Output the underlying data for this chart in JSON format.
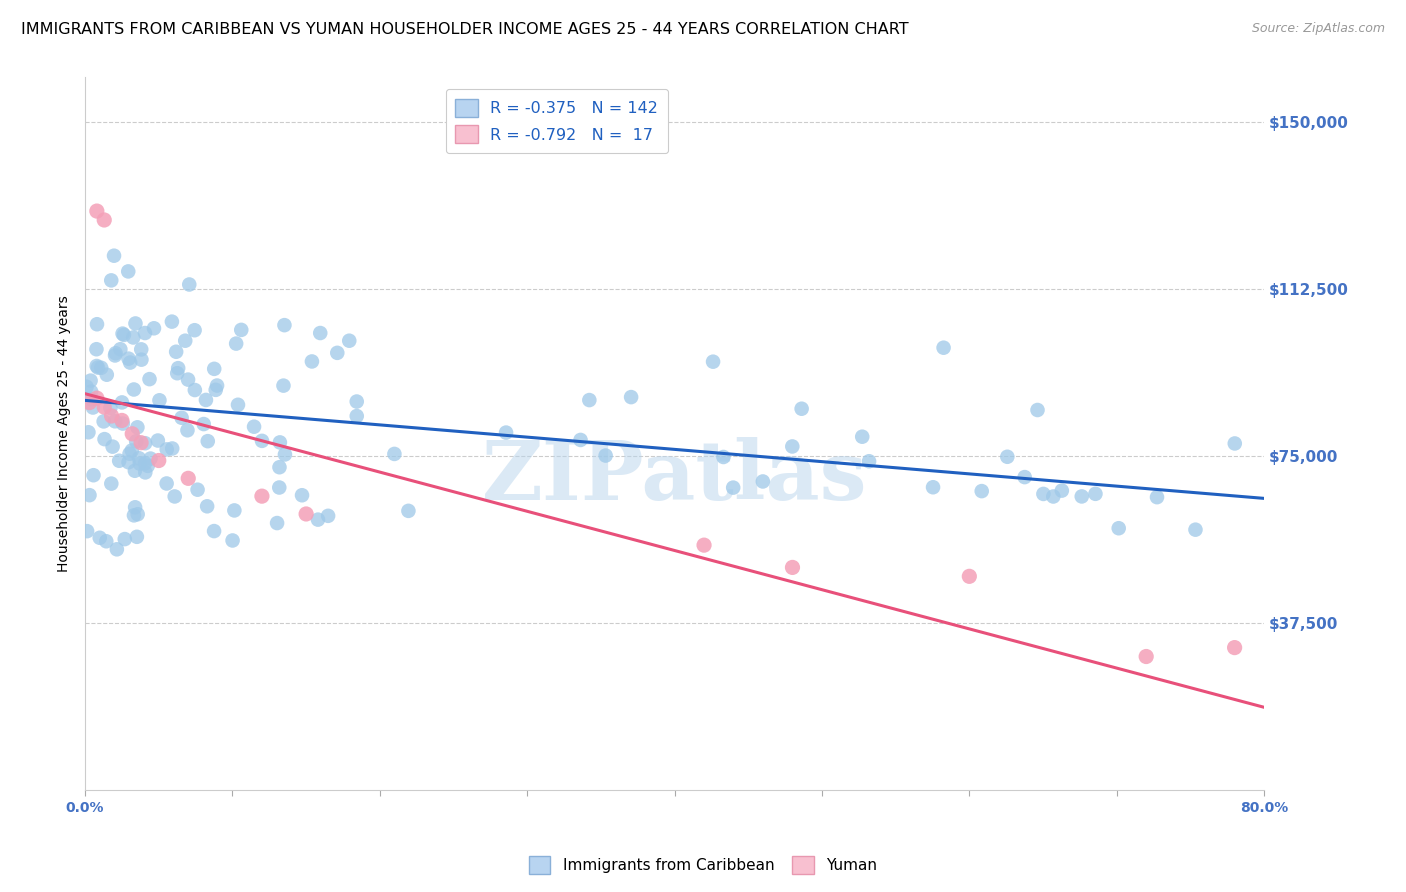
{
  "title": "IMMIGRANTS FROM CARIBBEAN VS YUMAN HOUSEHOLDER INCOME AGES 25 - 44 YEARS CORRELATION CHART",
  "source": "Source: ZipAtlas.com",
  "ylabel": "Householder Income Ages 25 - 44 years",
  "xmin": 0.0,
  "xmax": 0.8,
  "ymin": 0,
  "ymax": 160000,
  "yticks": [
    37500,
    75000,
    112500,
    150000
  ],
  "ytick_labels": [
    "$37,500",
    "$75,000",
    "$112,500",
    "$150,000"
  ],
  "xticks": [
    0.0,
    0.1,
    0.2,
    0.3,
    0.4,
    0.5,
    0.6,
    0.7,
    0.8
  ],
  "xtick_labels": [
    "0.0%",
    "",
    "",
    "",
    "",
    "",
    "",
    "",
    "80.0%"
  ],
  "blue_scatter_color": "#9ec8e8",
  "pink_scatter_color": "#f4a0b8",
  "blue_line_color": "#2060c0",
  "pink_line_color": "#e8507a",
  "blue_line_intercept": 87500,
  "blue_line_slope": -27500,
  "pink_line_intercept": 89000,
  "pink_line_slope": -88000,
  "background_color": "#ffffff",
  "grid_color": "#cccccc",
  "ytick_color": "#4472c4",
  "xtick_left_color": "#4472c4",
  "xtick_right_color": "#4472c4",
  "watermark": "ZIPatlas",
  "watermark_color": "#b8d4ec",
  "watermark_alpha": 0.5
}
